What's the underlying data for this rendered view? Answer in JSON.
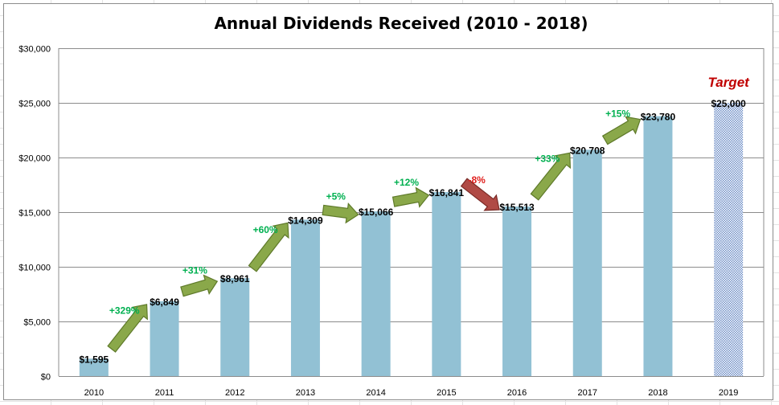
{
  "chart_data": {
    "type": "bar",
    "title": "Annual Dividends Received (2010 - 2018)",
    "categories": [
      "2010",
      "2011",
      "2012",
      "2013",
      "2014",
      "2015",
      "2016",
      "2017",
      "2018",
      "2019"
    ],
    "values": [
      1595,
      6849,
      8961,
      14309,
      15066,
      16841,
      15513,
      20708,
      23780,
      25000
    ],
    "value_labels": [
      "$1,595",
      "$6,849",
      "$8,961",
      "$14,309",
      "$15,066",
      "$16,841",
      "$15,513",
      "$20,708",
      "$23,780",
      "$25,000"
    ],
    "target_category": "2019",
    "target_label": "Target",
    "growth_labels": [
      "+329%",
      "+31%",
      "+60%",
      "+5%",
      "+12%",
      "-8%",
      "+33%",
      "+15%"
    ],
    "ylim": [
      0,
      30000
    ],
    "yticks": [
      0,
      5000,
      10000,
      15000,
      20000,
      25000,
      30000
    ],
    "ytick_labels": [
      "$0",
      "$5,000",
      "$10,000",
      "$15,000",
      "$20,000",
      "$25,000",
      "$30,000"
    ],
    "xlabel": "",
    "ylabel": "",
    "grid": true,
    "colors": {
      "bar": "#92c1d4",
      "target_pattern": "#6f8fc7",
      "target_text": "#c00000",
      "increase_arrow": "#8aa84a",
      "increase_arrow_stroke": "#5f7a2a",
      "decrease_arrow": "#b04a45",
      "decrease_arrow_stroke": "#7a2a26",
      "increase_text": "#00b050",
      "decrease_text": "#e0201e",
      "gridline": "#8c8c8c"
    }
  }
}
